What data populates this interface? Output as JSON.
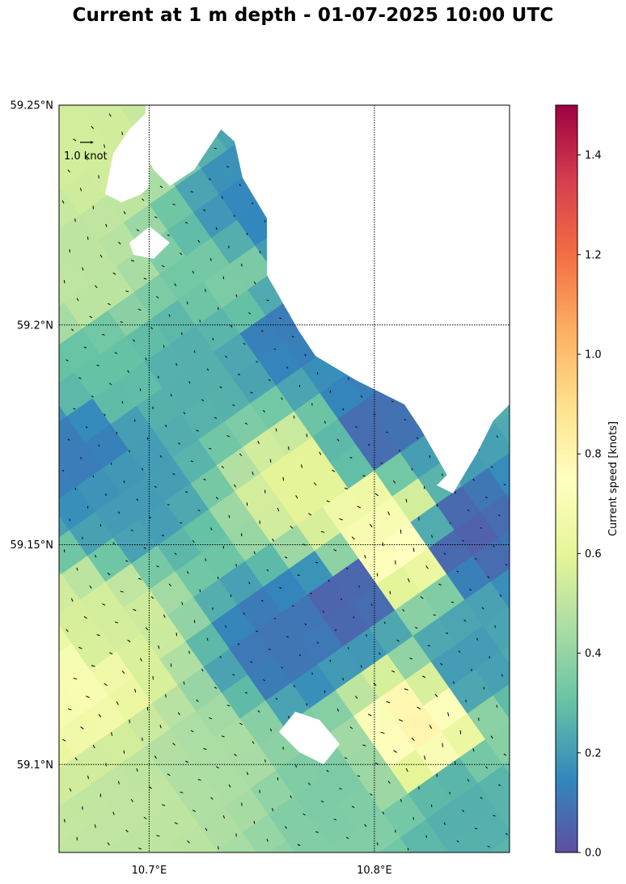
{
  "figure": {
    "title": "Current at 1 m depth - 01-07-2025 10:00 UTC"
  },
  "map": {
    "lon_range": [
      10.66,
      10.86
    ],
    "lat_range": [
      59.08,
      59.25
    ],
    "lon_ticks": [
      {
        "value": 10.7,
        "label": "10.7°E"
      },
      {
        "value": 10.8,
        "label": "10.8°E"
      }
    ],
    "lat_ticks": [
      {
        "value": 59.25,
        "label": "59.25°N"
      },
      {
        "value": 59.2,
        "label": "59.2°N"
      },
      {
        "value": 59.15,
        "label": "59.15°N"
      },
      {
        "value": 59.1,
        "label": "59.1°N"
      }
    ],
    "gridlines": true,
    "gridline_style": "dotted",
    "reference_arrow_label": "1.0 knot",
    "grid_rotation_deg": -35
  },
  "colorbar": {
    "label": "Current speed [knots]",
    "range": [
      0,
      1.5
    ],
    "ticks": [
      "0.0",
      "0.2",
      "0.4",
      "0.6",
      "0.8",
      "1.0",
      "1.2",
      "1.4"
    ],
    "tick_values": [
      0,
      0.2,
      0.4,
      0.6,
      0.8,
      1.0,
      1.2,
      1.4
    ],
    "colormap": "Spectral_r",
    "colormap_stops": [
      "#5e4fa2",
      "#3288bd",
      "#66c2a5",
      "#abdda4",
      "#e6f598",
      "#ffffbf",
      "#fee08b",
      "#fdae61",
      "#f46d43",
      "#d53e4f",
      "#9e0142"
    ]
  },
  "chart_data": {
    "type": "heatmap",
    "title": "Current at 1 m depth - 01-07-2025 10:00 UTC",
    "xlabel": "",
    "ylabel": "",
    "value_label": "Current speed [knots]",
    "vrange": [
      0,
      1.5
    ],
    "x_ticks": [
      "10.7°E",
      "10.8°E"
    ],
    "y_ticks": [
      "59.25°N",
      "59.2°N",
      "59.15°N",
      "59.1°N"
    ],
    "regions": [
      {
        "lon": 10.67,
        "lat": 59.24,
        "speed": 0.55
      },
      {
        "lon": 10.67,
        "lat": 59.21,
        "speed": 0.5
      },
      {
        "lon": 10.68,
        "lat": 59.19,
        "speed": 0.3
      },
      {
        "lon": 10.67,
        "lat": 59.17,
        "speed": 0.12
      },
      {
        "lon": 10.69,
        "lat": 59.16,
        "speed": 0.2
      },
      {
        "lon": 10.68,
        "lat": 59.13,
        "speed": 0.55
      },
      {
        "lon": 10.67,
        "lat": 59.12,
        "speed": 0.7
      },
      {
        "lon": 10.72,
        "lat": 59.19,
        "speed": 0.25
      },
      {
        "lon": 10.74,
        "lat": 59.21,
        "speed": 0.35
      },
      {
        "lon": 10.75,
        "lat": 59.225,
        "speed": 0.15
      },
      {
        "lon": 10.76,
        "lat": 59.2,
        "speed": 0.12
      },
      {
        "lon": 10.77,
        "lat": 59.165,
        "speed": 0.6
      },
      {
        "lon": 10.8,
        "lat": 59.155,
        "speed": 0.7
      },
      {
        "lon": 10.81,
        "lat": 59.148,
        "speed": 0.75
      },
      {
        "lon": 10.8,
        "lat": 59.175,
        "speed": 0.08
      },
      {
        "lon": 10.76,
        "lat": 59.128,
        "speed": 0.1
      },
      {
        "lon": 10.79,
        "lat": 59.138,
        "speed": 0.05
      },
      {
        "lon": 10.82,
        "lat": 59.11,
        "speed": 0.8
      },
      {
        "lon": 10.84,
        "lat": 59.152,
        "speed": 0.05
      },
      {
        "lon": 10.84,
        "lat": 59.123,
        "speed": 0.2
      },
      {
        "lon": 10.84,
        "lat": 59.09,
        "speed": 0.25
      },
      {
        "lon": 10.73,
        "lat": 59.1,
        "speed": 0.45
      },
      {
        "lon": 10.7,
        "lat": 59.09,
        "speed": 0.5
      },
      {
        "lon": 10.78,
        "lat": 59.095,
        "speed": 0.35
      }
    ]
  }
}
